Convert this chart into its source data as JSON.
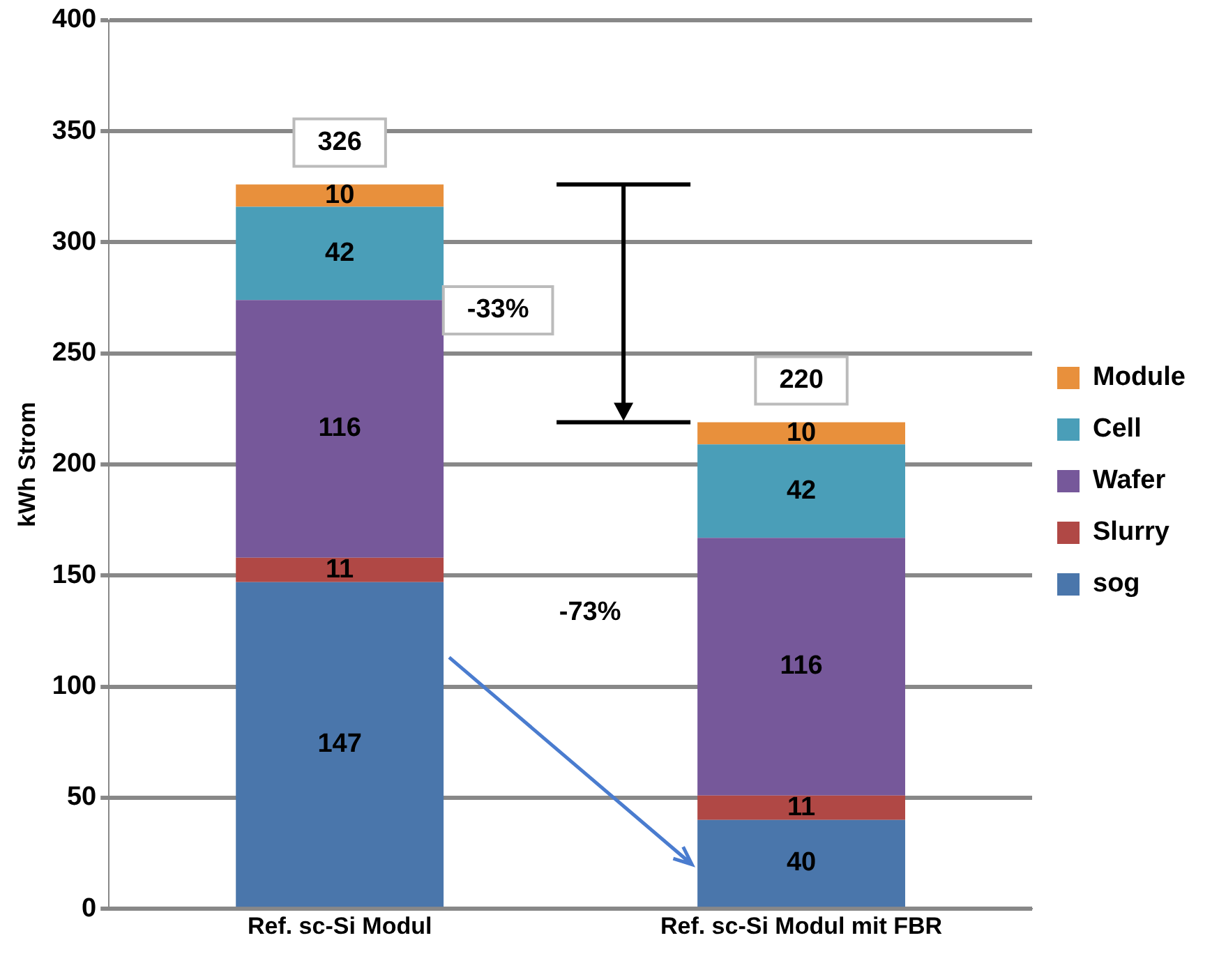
{
  "chart_data": {
    "type": "bar",
    "stacked": true,
    "ylabel": "kWh Strom",
    "categories": [
      "Ref. sc-Si Modul",
      "Ref. sc-Si Modul mit FBR"
    ],
    "series": [
      {
        "name": "sog",
        "color": "#4a76ab",
        "values": [
          147,
          40
        ]
      },
      {
        "name": "Slurry",
        "color": "#b04845",
        "values": [
          11,
          11
        ]
      },
      {
        "name": "Wafer",
        "color": "#76589a",
        "values": [
          116,
          116
        ]
      },
      {
        "name": "Cell",
        "color": "#4a9eb8",
        "values": [
          42,
          42
        ]
      },
      {
        "name": "Module",
        "color": "#e8903c",
        "values": [
          10,
          10
        ]
      }
    ],
    "totals": [
      "326",
      "220"
    ],
    "annotations": [
      "-33%",
      "-73%"
    ],
    "data_labels": true,
    "ylim": [
      0,
      400
    ],
    "yticks": [
      0,
      50,
      100,
      150,
      200,
      250,
      300,
      350,
      400
    ],
    "grid": "y",
    "legend": "right"
  }
}
